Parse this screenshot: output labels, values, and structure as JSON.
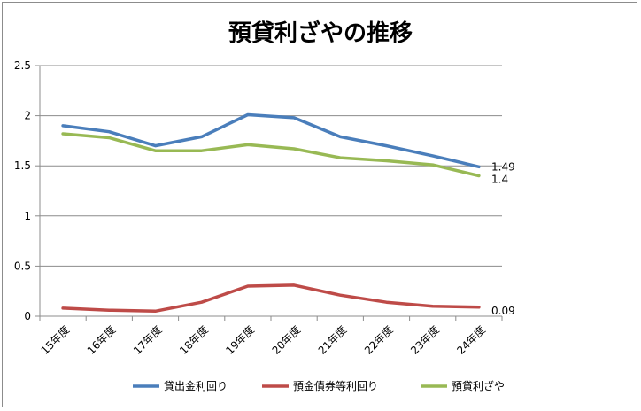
{
  "chart_data": {
    "type": "line",
    "title": "預貸利ざやの推移",
    "categories": [
      "15年度",
      "16年度",
      "17年度",
      "18年度",
      "19年度",
      "20年度",
      "21年度",
      "22年度",
      "23年度",
      "24年度"
    ],
    "ylim": [
      0,
      2.5
    ],
    "yticks": [
      "0",
      "0.5",
      "1",
      "1.5",
      "2",
      "2.5"
    ],
    "grid": true,
    "legend": "bottom",
    "series": [
      {
        "name": "貸出金利回り",
        "color": "#4a7ebb",
        "values": [
          1.9,
          1.84,
          1.7,
          1.79,
          2.01,
          1.98,
          1.79,
          1.7,
          1.6,
          1.49
        ],
        "end_label": "1.49"
      },
      {
        "name": "預金債券等利回り",
        "color": "#be4b48",
        "values": [
          0.08,
          0.06,
          0.05,
          0.14,
          0.3,
          0.31,
          0.21,
          0.14,
          0.1,
          0.09
        ],
        "end_label": "0.09"
      },
      {
        "name": "預貸利ざや",
        "color": "#98b954",
        "values": [
          1.82,
          1.78,
          1.65,
          1.65,
          1.71,
          1.67,
          1.58,
          1.55,
          1.51,
          1.4
        ],
        "end_label": "1.4"
      }
    ]
  }
}
